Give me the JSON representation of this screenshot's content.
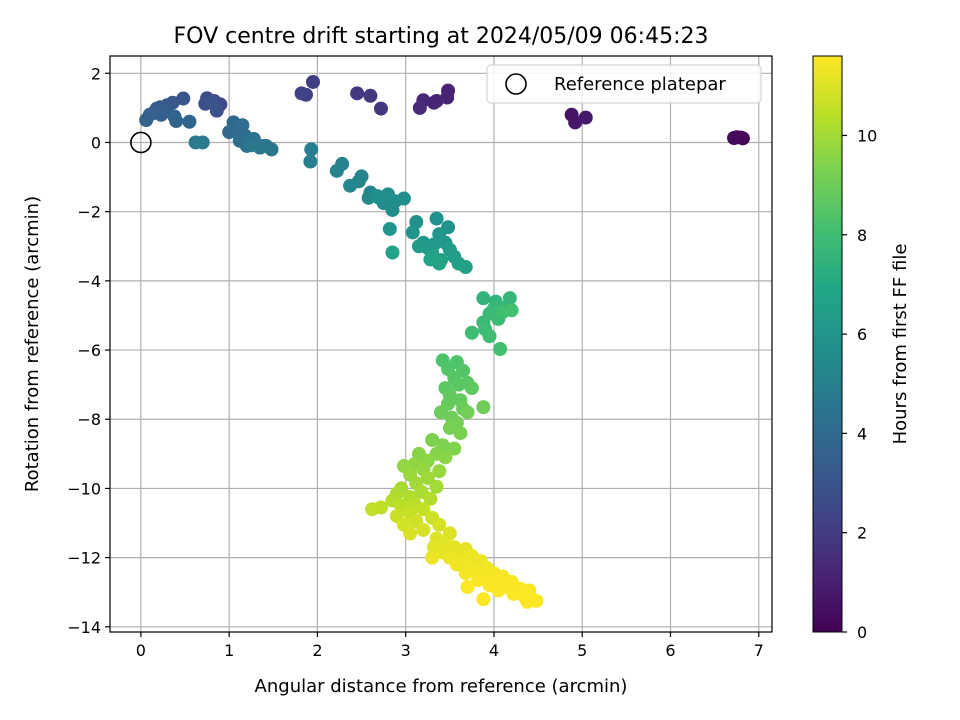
{
  "chart_data": {
    "type": "scatter",
    "title": "FOV centre drift starting at 2024/05/09 06:45:23",
    "xlabel": "Angular distance from reference (arcmin)",
    "ylabel": "Rotation from reference (arcmin)",
    "xlim": [
      -0.35,
      7.15
    ],
    "ylim": [
      -14.15,
      2.5
    ],
    "xticks": [
      0,
      1,
      2,
      3,
      4,
      5,
      6,
      7
    ],
    "yticks": [
      -14,
      -12,
      -10,
      -8,
      -6,
      -4,
      -2,
      0,
      2
    ],
    "grid": true,
    "legend": {
      "placement": "top-right",
      "entries": [
        "Reference platepar"
      ]
    },
    "reference_point": {
      "x": 0,
      "y": 0,
      "label": "Reference platepar"
    },
    "colorbar": {
      "label": "Hours from first FF file",
      "range": [
        0,
        11.6
      ],
      "ticks": [
        0,
        2,
        4,
        6,
        8,
        10
      ],
      "colormap": "viridis"
    },
    "points": [
      {
        "x": 6.75,
        "y": 0.15,
        "c": 0.0
      },
      {
        "x": 6.82,
        "y": 0.12,
        "c": 0.1
      },
      {
        "x": 6.8,
        "y": 0.14,
        "c": 0.2
      },
      {
        "x": 6.72,
        "y": 0.13,
        "c": 0.3
      },
      {
        "x": 4.88,
        "y": 0.8,
        "c": 0.6
      },
      {
        "x": 4.92,
        "y": 0.58,
        "c": 0.7
      },
      {
        "x": 5.04,
        "y": 0.72,
        "c": 0.8
      },
      {
        "x": 3.48,
        "y": 1.5,
        "c": 1.1
      },
      {
        "x": 3.47,
        "y": 1.3,
        "c": 1.15
      },
      {
        "x": 3.35,
        "y": 1.2,
        "c": 1.2
      },
      {
        "x": 3.32,
        "y": 1.15,
        "c": 1.25
      },
      {
        "x": 3.2,
        "y": 1.22,
        "c": 1.3
      },
      {
        "x": 3.16,
        "y": 1.0,
        "c": 1.4
      },
      {
        "x": 2.72,
        "y": 0.98,
        "c": 1.8
      },
      {
        "x": 2.6,
        "y": 1.35,
        "c": 1.85
      },
      {
        "x": 2.45,
        "y": 1.42,
        "c": 1.9
      },
      {
        "x": 1.95,
        "y": 1.75,
        "c": 2.1
      },
      {
        "x": 1.82,
        "y": 1.42,
        "c": 2.2
      },
      {
        "x": 1.87,
        "y": 1.38,
        "c": 2.25
      },
      {
        "x": 0.9,
        "y": 1.1,
        "c": 2.5
      },
      {
        "x": 0.83,
        "y": 1.2,
        "c": 2.6
      },
      {
        "x": 0.75,
        "y": 1.28,
        "c": 2.7
      },
      {
        "x": 0.73,
        "y": 1.12,
        "c": 2.8
      },
      {
        "x": 0.86,
        "y": 0.92,
        "c": 2.9
      },
      {
        "x": 0.8,
        "y": 1.18,
        "c": 3.0
      },
      {
        "x": 0.48,
        "y": 1.27,
        "c": 3.1
      },
      {
        "x": 0.36,
        "y": 1.15,
        "c": 3.15
      },
      {
        "x": 0.3,
        "y": 1.08,
        "c": 3.2
      },
      {
        "x": 0.22,
        "y": 1.02,
        "c": 3.3
      },
      {
        "x": 0.18,
        "y": 0.98,
        "c": 3.35
      },
      {
        "x": 0.28,
        "y": 0.92,
        "c": 3.4
      },
      {
        "x": 0.14,
        "y": 0.85,
        "c": 3.45
      },
      {
        "x": 0.23,
        "y": 0.8,
        "c": 3.5
      },
      {
        "x": 0.1,
        "y": 0.8,
        "c": 3.55
      },
      {
        "x": 0.06,
        "y": 0.65,
        "c": 3.6
      },
      {
        "x": 0.4,
        "y": 0.62,
        "c": 3.65
      },
      {
        "x": 0.38,
        "y": 0.75,
        "c": 3.7
      },
      {
        "x": 0.55,
        "y": 0.6,
        "c": 3.75
      },
      {
        "x": 1.05,
        "y": 0.58,
        "c": 3.9
      },
      {
        "x": 1.0,
        "y": 0.3,
        "c": 4.0
      },
      {
        "x": 1.1,
        "y": 0.35,
        "c": 4.05
      },
      {
        "x": 1.15,
        "y": 0.5,
        "c": 4.1
      },
      {
        "x": 1.18,
        "y": 0.2,
        "c": 4.15
      },
      {
        "x": 1.12,
        "y": 0.05,
        "c": 4.2
      },
      {
        "x": 1.22,
        "y": 0.0,
        "c": 4.25
      },
      {
        "x": 1.2,
        "y": -0.1,
        "c": 4.3
      },
      {
        "x": 1.28,
        "y": 0.1,
        "c": 4.35
      },
      {
        "x": 1.3,
        "y": -0.05,
        "c": 4.4
      },
      {
        "x": 1.35,
        "y": -0.15,
        "c": 4.45
      },
      {
        "x": 1.42,
        "y": -0.1,
        "c": 4.5
      },
      {
        "x": 1.48,
        "y": -0.2,
        "c": 4.55
      },
      {
        "x": 1.38,
        "y": -0.1,
        "c": 4.6
      },
      {
        "x": 1.25,
        "y": -0.08,
        "c": 4.6
      },
      {
        "x": 0.62,
        "y": 0.0,
        "c": 4.7
      },
      {
        "x": 0.7,
        "y": 0.0,
        "c": 4.75
      },
      {
        "x": 1.93,
        "y": -0.2,
        "c": 4.9
      },
      {
        "x": 1.92,
        "y": -0.55,
        "c": 5.0
      },
      {
        "x": 2.28,
        "y": -0.62,
        "c": 5.1
      },
      {
        "x": 2.22,
        "y": -0.82,
        "c": 5.15
      },
      {
        "x": 2.5,
        "y": -0.98,
        "c": 5.2
      },
      {
        "x": 2.47,
        "y": -1.12,
        "c": 5.25
      },
      {
        "x": 2.37,
        "y": -1.25,
        "c": 5.3
      },
      {
        "x": 2.6,
        "y": -1.45,
        "c": 5.35
      },
      {
        "x": 2.58,
        "y": -1.6,
        "c": 5.4
      },
      {
        "x": 2.7,
        "y": -1.6,
        "c": 5.45
      },
      {
        "x": 2.75,
        "y": -1.75,
        "c": 5.5
      },
      {
        "x": 2.88,
        "y": -1.7,
        "c": 5.55
      },
      {
        "x": 2.85,
        "y": -1.95,
        "c": 5.6
      },
      {
        "x": 2.98,
        "y": -1.62,
        "c": 5.65
      },
      {
        "x": 2.8,
        "y": -1.5,
        "c": 5.7
      },
      {
        "x": 2.68,
        "y": -1.55,
        "c": 5.75
      },
      {
        "x": 3.12,
        "y": -2.3,
        "c": 5.8
      },
      {
        "x": 3.35,
        "y": -2.2,
        "c": 5.85
      },
      {
        "x": 3.48,
        "y": -2.45,
        "c": 5.9
      },
      {
        "x": 3.38,
        "y": -2.65,
        "c": 5.95
      },
      {
        "x": 3.08,
        "y": -2.6,
        "c": 6.0
      },
      {
        "x": 2.82,
        "y": -2.5,
        "c": 6.05
      },
      {
        "x": 3.2,
        "y": -2.9,
        "c": 6.1
      },
      {
        "x": 3.32,
        "y": -2.95,
        "c": 6.15
      },
      {
        "x": 3.45,
        "y": -2.9,
        "c": 6.2
      },
      {
        "x": 3.5,
        "y": -3.1,
        "c": 6.25
      },
      {
        "x": 3.25,
        "y": -3.05,
        "c": 6.3
      },
      {
        "x": 3.15,
        "y": -3.0,
        "c": 6.35
      },
      {
        "x": 3.3,
        "y": -3.2,
        "c": 6.4
      },
      {
        "x": 3.55,
        "y": -3.3,
        "c": 6.45
      },
      {
        "x": 3.4,
        "y": -3.4,
        "c": 6.5
      },
      {
        "x": 3.6,
        "y": -3.5,
        "c": 6.55
      },
      {
        "x": 3.68,
        "y": -3.6,
        "c": 6.6
      },
      {
        "x": 3.28,
        "y": -3.38,
        "c": 6.65
      },
      {
        "x": 2.85,
        "y": -3.18,
        "c": 6.7
      },
      {
        "x": 3.38,
        "y": -3.5,
        "c": 6.75
      },
      {
        "x": 3.88,
        "y": -4.5,
        "c": 7.5
      },
      {
        "x": 4.02,
        "y": -4.6,
        "c": 7.55
      },
      {
        "x": 4.18,
        "y": -4.5,
        "c": 7.6
      },
      {
        "x": 4.15,
        "y": -4.75,
        "c": 7.65
      },
      {
        "x": 4.0,
        "y": -4.8,
        "c": 7.7
      },
      {
        "x": 3.95,
        "y": -4.95,
        "c": 7.75
      },
      {
        "x": 4.05,
        "y": -5.1,
        "c": 7.8
      },
      {
        "x": 3.88,
        "y": -5.2,
        "c": 7.85
      },
      {
        "x": 3.9,
        "y": -5.4,
        "c": 7.9
      },
      {
        "x": 3.75,
        "y": -5.5,
        "c": 7.95
      },
      {
        "x": 3.95,
        "y": -5.6,
        "c": 8.0
      },
      {
        "x": 4.07,
        "y": -5.97,
        "c": 8.05
      },
      {
        "x": 4.1,
        "y": -4.9,
        "c": 8.05
      },
      {
        "x": 4.2,
        "y": -4.85,
        "c": 8.1
      },
      {
        "x": 3.42,
        "y": -6.3,
        "c": 8.3
      },
      {
        "x": 3.58,
        "y": -6.35,
        "c": 8.35
      },
      {
        "x": 3.48,
        "y": -6.55,
        "c": 8.4
      },
      {
        "x": 3.65,
        "y": -6.6,
        "c": 8.45
      },
      {
        "x": 3.55,
        "y": -6.8,
        "c": 8.5
      },
      {
        "x": 3.7,
        "y": -6.95,
        "c": 8.55
      },
      {
        "x": 3.6,
        "y": -7.0,
        "c": 8.6
      },
      {
        "x": 3.45,
        "y": -7.1,
        "c": 8.65
      },
      {
        "x": 3.75,
        "y": -7.1,
        "c": 8.7
      },
      {
        "x": 3.5,
        "y": -7.3,
        "c": 8.75
      },
      {
        "x": 3.62,
        "y": -7.45,
        "c": 8.8
      },
      {
        "x": 3.48,
        "y": -7.55,
        "c": 8.85
      },
      {
        "x": 3.65,
        "y": -7.7,
        "c": 8.9
      },
      {
        "x": 3.4,
        "y": -7.8,
        "c": 8.95
      },
      {
        "x": 3.52,
        "y": -7.95,
        "c": 9.0
      },
      {
        "x": 3.88,
        "y": -7.65,
        "c": 9.05
      },
      {
        "x": 3.7,
        "y": -7.8,
        "c": 9.1
      },
      {
        "x": 3.58,
        "y": -8.1,
        "c": 9.15
      },
      {
        "x": 3.5,
        "y": -8.25,
        "c": 9.2
      },
      {
        "x": 3.62,
        "y": -8.4,
        "c": 9.25
      },
      {
        "x": 3.3,
        "y": -8.6,
        "c": 9.3
      },
      {
        "x": 3.42,
        "y": -8.75,
        "c": 9.35
      },
      {
        "x": 3.55,
        "y": -8.85,
        "c": 9.4
      },
      {
        "x": 3.35,
        "y": -9.0,
        "c": 9.45
      },
      {
        "x": 3.15,
        "y": -9.0,
        "c": 9.5
      },
      {
        "x": 3.45,
        "y": -9.1,
        "c": 9.55
      },
      {
        "x": 3.25,
        "y": -9.2,
        "c": 9.6
      },
      {
        "x": 3.1,
        "y": -9.3,
        "c": 9.65
      },
      {
        "x": 2.98,
        "y": -9.35,
        "c": 9.7
      },
      {
        "x": 3.2,
        "y": -9.45,
        "c": 9.75
      },
      {
        "x": 3.38,
        "y": -9.5,
        "c": 9.8
      },
      {
        "x": 3.05,
        "y": -9.6,
        "c": 9.85
      },
      {
        "x": 3.25,
        "y": -9.7,
        "c": 9.9
      },
      {
        "x": 3.12,
        "y": -9.85,
        "c": 9.95
      },
      {
        "x": 3.35,
        "y": -9.95,
        "c": 10.0
      },
      {
        "x": 2.95,
        "y": -10.0,
        "c": 10.05
      },
      {
        "x": 3.18,
        "y": -10.1,
        "c": 10.1
      },
      {
        "x": 2.9,
        "y": -10.15,
        "c": 10.15
      },
      {
        "x": 3.05,
        "y": -10.25,
        "c": 10.2
      },
      {
        "x": 3.28,
        "y": -10.3,
        "c": 10.25
      },
      {
        "x": 2.85,
        "y": -10.35,
        "c": 10.3
      },
      {
        "x": 3.1,
        "y": -10.45,
        "c": 10.35
      },
      {
        "x": 2.95,
        "y": -10.5,
        "c": 10.4
      },
      {
        "x": 2.72,
        "y": -10.55,
        "c": 10.45
      },
      {
        "x": 2.62,
        "y": -10.6,
        "c": 10.5
      },
      {
        "x": 3.2,
        "y": -10.6,
        "c": 10.55
      },
      {
        "x": 3.05,
        "y": -10.7,
        "c": 10.6
      },
      {
        "x": 2.9,
        "y": -10.8,
        "c": 10.65
      },
      {
        "x": 3.3,
        "y": -10.85,
        "c": 10.7
      },
      {
        "x": 3.12,
        "y": -10.95,
        "c": 10.75
      },
      {
        "x": 2.98,
        "y": -11.05,
        "c": 10.8
      },
      {
        "x": 3.38,
        "y": -11.05,
        "c": 10.85
      },
      {
        "x": 3.2,
        "y": -11.2,
        "c": 10.9
      },
      {
        "x": 3.05,
        "y": -11.3,
        "c": 10.95
      },
      {
        "x": 3.5,
        "y": -11.3,
        "c": 11.0
      },
      {
        "x": 3.35,
        "y": -11.45,
        "c": 11.05
      },
      {
        "x": 3.45,
        "y": -11.6,
        "c": 11.1
      },
      {
        "x": 3.32,
        "y": -11.7,
        "c": 11.12
      },
      {
        "x": 3.55,
        "y": -11.7,
        "c": 11.15
      },
      {
        "x": 3.68,
        "y": -11.75,
        "c": 11.18
      },
      {
        "x": 3.42,
        "y": -11.85,
        "c": 11.2
      },
      {
        "x": 3.6,
        "y": -11.9,
        "c": 11.22
      },
      {
        "x": 3.75,
        "y": -11.95,
        "c": 11.25
      },
      {
        "x": 3.5,
        "y": -12.0,
        "c": 11.28
      },
      {
        "x": 3.3,
        "y": -12.0,
        "c": 11.3
      },
      {
        "x": 3.65,
        "y": -12.1,
        "c": 11.32
      },
      {
        "x": 3.85,
        "y": -12.1,
        "c": 11.34
      },
      {
        "x": 3.58,
        "y": -12.2,
        "c": 11.36
      },
      {
        "x": 3.72,
        "y": -12.25,
        "c": 11.38
      },
      {
        "x": 3.92,
        "y": -12.3,
        "c": 11.4
      },
      {
        "x": 3.8,
        "y": -12.4,
        "c": 11.42
      },
      {
        "x": 3.68,
        "y": -12.45,
        "c": 11.44
      },
      {
        "x": 4.0,
        "y": -12.45,
        "c": 11.46
      },
      {
        "x": 3.9,
        "y": -12.55,
        "c": 11.48
      },
      {
        "x": 4.1,
        "y": -12.55,
        "c": 11.5
      },
      {
        "x": 3.82,
        "y": -12.65,
        "c": 11.51
      },
      {
        "x": 4.02,
        "y": -12.7,
        "c": 11.52
      },
      {
        "x": 4.2,
        "y": -12.7,
        "c": 11.53
      },
      {
        "x": 3.95,
        "y": -12.8,
        "c": 11.54
      },
      {
        "x": 4.12,
        "y": -12.85,
        "c": 11.55
      },
      {
        "x": 3.7,
        "y": -12.85,
        "c": 11.55
      },
      {
        "x": 4.3,
        "y": -12.9,
        "c": 11.56
      },
      {
        "x": 4.05,
        "y": -12.95,
        "c": 11.57
      },
      {
        "x": 4.4,
        "y": -12.95,
        "c": 11.58
      },
      {
        "x": 4.22,
        "y": -13.05,
        "c": 11.58
      },
      {
        "x": 3.88,
        "y": -13.2,
        "c": 11.59
      },
      {
        "x": 4.35,
        "y": -13.15,
        "c": 11.59
      },
      {
        "x": 4.48,
        "y": -13.25,
        "c": 11.6
      },
      {
        "x": 4.38,
        "y": -13.28,
        "c": 11.6
      }
    ]
  }
}
